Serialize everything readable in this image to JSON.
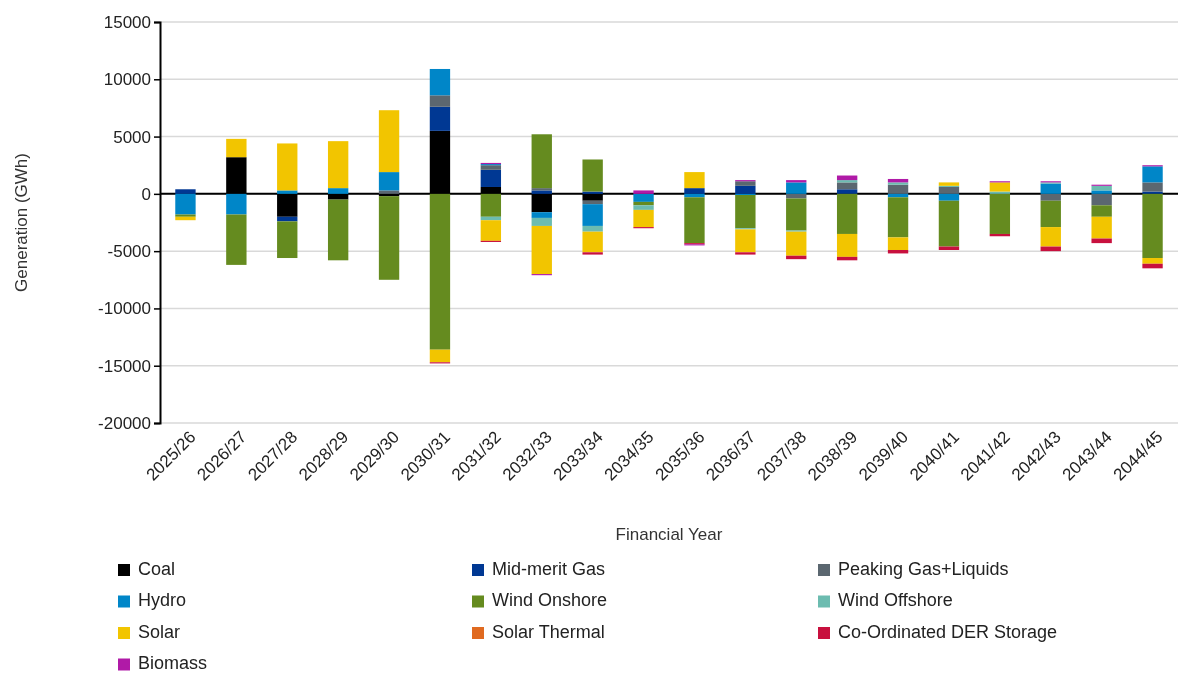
{
  "chart_data": {
    "type": "bar",
    "stacked": true,
    "xlabel": "Financial Year",
    "ylabel": "Generation (GWh)",
    "categories": [
      "2025/26",
      "2026/27",
      "2027/28",
      "2028/29",
      "2029/30",
      "2030/31",
      "2031/32",
      "2032/33",
      "2033/34",
      "2034/35",
      "2035/36",
      "2036/37",
      "2037/38",
      "2038/39",
      "2039/40",
      "2040/41",
      "2041/42",
      "2042/43",
      "2043/44",
      "2044/45"
    ],
    "ylim": [
      -20000,
      15000
    ],
    "yticks": [
      -20000,
      -15000,
      -10000,
      -5000,
      0,
      5000,
      10000,
      15000
    ],
    "grid": "y",
    "legend": "bottom",
    "series": [
      {
        "name": "Coal",
        "color": "#000000",
        "values": [
          0,
          3200,
          -2000,
          -500,
          -200,
          5500,
          600,
          -1600,
          -600,
          0,
          0,
          0,
          0,
          0,
          0,
          0,
          0,
          0,
          0,
          0
        ]
      },
      {
        "name": "Mid-merit Gas",
        "color": "#003893",
        "values": [
          400,
          0,
          -400,
          0,
          0,
          2100,
          1500,
          300,
          200,
          0,
          500,
          700,
          0,
          400,
          0,
          0,
          0,
          0,
          0,
          200
        ]
      },
      {
        "name": "Peaking Gas+Liquids",
        "color": "#5b6770",
        "values": [
          0,
          0,
          0,
          0,
          300,
          1000,
          400,
          200,
          -300,
          0,
          0,
          400,
          -400,
          600,
          800,
          600,
          0,
          -600,
          -1000,
          800
        ]
      },
      {
        "name": "Hydro",
        "color": "#0086c8",
        "values": [
          -1800,
          -1800,
          300,
          500,
          1600,
          2300,
          100,
          -500,
          -1900,
          -700,
          -300,
          -100,
          1000,
          0,
          -300,
          -600,
          0,
          900,
          300,
          1400
        ]
      },
      {
        "name": "Wind Onshore",
        "color": "#658b1f",
        "values": [
          -200,
          -4400,
          -3200,
          -5300,
          -7300,
          -13600,
          -2000,
          4700,
          2800,
          -300,
          -4000,
          -2900,
          -2800,
          -3500,
          -3500,
          -4000,
          -3500,
          -2300,
          -1000,
          -5600
        ]
      },
      {
        "name": "Wind Offshore",
        "color": "#6cbcb0",
        "values": [
          0,
          0,
          0,
          0,
          0,
          0,
          -300,
          -700,
          -500,
          -400,
          0,
          -100,
          -100,
          200,
          200,
          100,
          200,
          100,
          400,
          0
        ]
      },
      {
        "name": "Solar",
        "color": "#f2c500",
        "values": [
          -300,
          1600,
          4100,
          4100,
          5400,
          -1100,
          -1800,
          -4200,
          -1800,
          -1500,
          1400,
          -2000,
          -2100,
          -2000,
          -1100,
          300,
          800,
          -1700,
          -1900,
          -500
        ]
      },
      {
        "name": "Solar Thermal",
        "color": "#e06a20",
        "values": [
          0,
          0,
          0,
          0,
          0,
          0,
          0,
          0,
          0,
          0,
          0,
          0,
          0,
          0,
          0,
          0,
          0,
          0,
          0,
          0
        ]
      },
      {
        "name": "Co-Ordinated DER Storage",
        "color": "#c8103e",
        "values": [
          0,
          0,
          0,
          0,
          0,
          -100,
          -100,
          0,
          -200,
          -100,
          -100,
          -200,
          -300,
          -300,
          -300,
          -300,
          -200,
          -400,
          -400,
          -400
        ]
      },
      {
        "name": "Biomass",
        "color": "#b01aa7",
        "values": [
          0,
          0,
          0,
          0,
          0,
          0,
          100,
          -100,
          0,
          300,
          -100,
          100,
          200,
          400,
          300,
          0,
          100,
          100,
          100,
          100
        ]
      }
    ]
  }
}
